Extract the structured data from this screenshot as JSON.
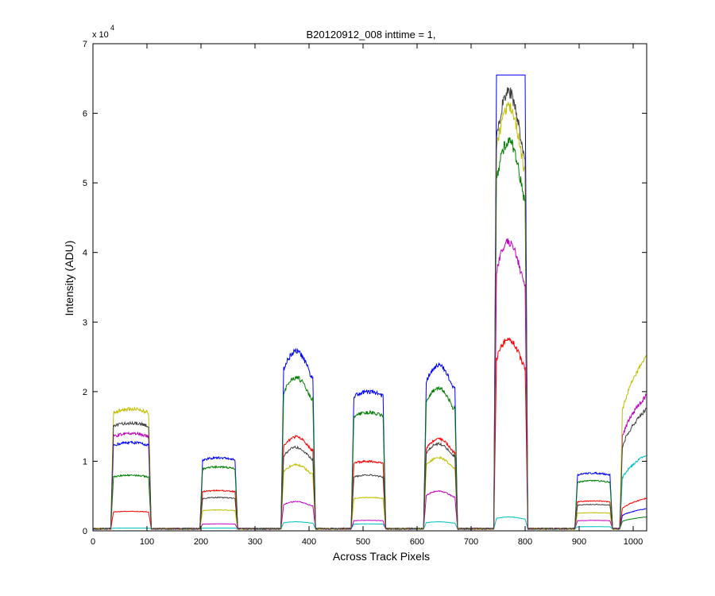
{
  "chart_data": {
    "type": "line",
    "title": "B20120912_008 inttime = 1,",
    "xlabel": "Across Track Pixels",
    "ylabel": "Intensity (ADU)",
    "y_exponent_label": "x 10",
    "y_exponent_power": "4",
    "xlim": [
      0,
      1025
    ],
    "ylim": [
      0,
      7
    ],
    "y_scale_multiplier": 10000,
    "grid": false,
    "legend": "none",
    "x_ticks": [
      0,
      100,
      200,
      300,
      400,
      500,
      600,
      700,
      800,
      900,
      1000
    ],
    "y_ticks": [
      0,
      1,
      2,
      3,
      4,
      5,
      6,
      7
    ],
    "baseline": 0.03,
    "edge_rise_px": 5,
    "segments": [
      {
        "start": 33,
        "end": 108,
        "profile": "flat"
      },
      {
        "start": 198,
        "end": 268,
        "profile": "flat"
      },
      {
        "start": 348,
        "end": 412,
        "profile": "dome"
      },
      {
        "start": 478,
        "end": 542,
        "profile": "flat"
      },
      {
        "start": 612,
        "end": 675,
        "profile": "dome"
      },
      {
        "start": 742,
        "end": 805,
        "profile": "dome"
      },
      {
        "start": 892,
        "end": 962,
        "profile": "flat"
      },
      {
        "start": 975,
        "end": 1025,
        "profile": "rise"
      }
    ],
    "series": [
      {
        "color": "#0000ff",
        "levels": [
          1.27,
          1.05,
          2.58,
          2.0,
          2.38,
          6.55,
          0.83,
          0.32
        ],
        "clipped_segments": [
          5
        ]
      },
      {
        "color": "#008000",
        "levels": [
          0.8,
          0.92,
          2.2,
          1.7,
          2.05,
          5.6,
          0.72,
          0.2
        ]
      },
      {
        "color": "#ff0000",
        "levels": [
          0.28,
          0.58,
          1.35,
          1.0,
          1.32,
          2.75,
          0.43,
          0.47
        ]
      },
      {
        "color": "#00bfbf",
        "levels": [
          0.04,
          0.04,
          0.13,
          0.1,
          0.13,
          0.2,
          0.06,
          1.1
        ]
      },
      {
        "color": "#bf00bf",
        "levels": [
          1.4,
          0.1,
          0.42,
          0.15,
          0.57,
          4.15,
          0.15,
          1.95
        ]
      },
      {
        "color": "#bfbf00",
        "levels": [
          1.75,
          0.3,
          0.95,
          0.48,
          1.05,
          6.1,
          0.26,
          2.5
        ]
      },
      {
        "color": "#404040",
        "levels": [
          1.55,
          0.48,
          1.2,
          0.8,
          1.25,
          6.3,
          0.38,
          1.75
        ]
      }
    ]
  }
}
